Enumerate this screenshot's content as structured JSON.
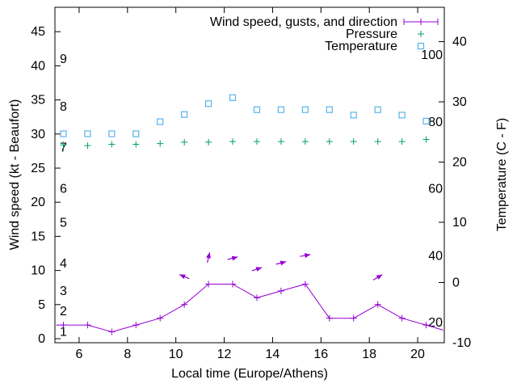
{
  "chart_data": {
    "type": "line",
    "title": "",
    "xlabel": "Local time (Europe/Athens)",
    "ylabel_left": "Wind speed (kt - Beaufort)",
    "ylabel_right": "Temperature (C - F)",
    "background_color": "#ffffff",
    "text_color": "#000000",
    "x_range": [
      5.0,
      21.1
    ],
    "x_ticks": [
      6,
      8,
      10,
      12,
      14,
      16,
      18,
      20
    ],
    "left_axis": {
      "unit": "kt",
      "ticks": [
        0,
        5,
        10,
        15,
        20,
        25,
        30,
        35,
        40,
        45
      ],
      "range": [
        -0.6,
        48.6
      ]
    },
    "right_axis": {
      "unit": "C",
      "ticks": [
        -10,
        0,
        10,
        20,
        30,
        40
      ],
      "range": [
        -10,
        45.7
      ]
    },
    "beaufort_labels": [
      {
        "text": "1",
        "kt": 1
      },
      {
        "text": "2",
        "kt": 4
      },
      {
        "text": "3",
        "kt": 7
      },
      {
        "text": "4",
        "kt": 11
      },
      {
        "text": "5",
        "kt": 17
      },
      {
        "text": "6",
        "kt": 22
      },
      {
        "text": "7",
        "kt": 28
      },
      {
        "text": "8",
        "kt": 34
      },
      {
        "text": "9",
        "kt": 41
      }
    ],
    "fahrenheit_labels": [
      {
        "text": "20",
        "f": 20
      },
      {
        "text": "40",
        "f": 40
      },
      {
        "text": "60",
        "f": 60
      },
      {
        "text": "80",
        "f": 80
      },
      {
        "text": "100",
        "f": 100
      }
    ],
    "hours": [
      5.35,
      6.35,
      7.35,
      8.35,
      9.35,
      10.35,
      11.35,
      12.35,
      13.35,
      14.35,
      15.35,
      16.35,
      17.35,
      18.35,
      19.35,
      20.35
    ],
    "series": {
      "wind": {
        "name": "Wind speed, gusts, and direction",
        "color": "#9400d3",
        "marker": "plus",
        "values_kt": [
          2,
          2,
          1,
          2,
          3,
          5,
          8,
          8,
          6,
          7,
          8,
          3,
          3,
          5,
          3,
          2
        ],
        "line_start": {
          "hour": 5.05,
          "kt": 2.0
        },
        "line_end": {
          "hour": 21.05,
          "kt": 1.25
        }
      },
      "gust_arrows": {
        "color": "#9400d3",
        "points": [
          {
            "hour": 10.35,
            "kt": 9.1,
            "dir_deg": 157
          },
          {
            "hour": 11.35,
            "kt": 11.9,
            "dir_deg": 77
          },
          {
            "hour": 12.35,
            "kt": 11.8,
            "dir_deg": 14
          },
          {
            "hour": 13.35,
            "kt": 10.2,
            "dir_deg": 18
          },
          {
            "hour": 14.35,
            "kt": 11.1,
            "dir_deg": 14
          },
          {
            "hour": 15.35,
            "kt": 12.2,
            "dir_deg": 10
          },
          {
            "hour": 18.35,
            "kt": 9.0,
            "dir_deg": 31
          }
        ]
      },
      "pressure": {
        "name": "Pressure",
        "color": "#009e73",
        "marker": "plus",
        "values_left_axis_units": [
          28.4,
          28.3,
          28.5,
          28.5,
          28.6,
          28.8,
          28.8,
          28.9,
          28.9,
          28.9,
          28.9,
          28.9,
          28.9,
          28.9,
          28.9,
          29.2
        ]
      },
      "temperature": {
        "name": "Temperature",
        "color": "#56b4e9",
        "marker": "open-square",
        "values_c": [
          24.7,
          24.7,
          24.7,
          24.7,
          26.7,
          27.9,
          29.7,
          30.7,
          28.7,
          28.7,
          28.7,
          28.7,
          27.8,
          28.7,
          27.8,
          26.8
        ]
      }
    },
    "legend": {
      "position": "top-right-inside",
      "entries": [
        "Wind speed, gusts, and direction",
        "Pressure",
        "Temperature"
      ]
    },
    "grid": false
  }
}
